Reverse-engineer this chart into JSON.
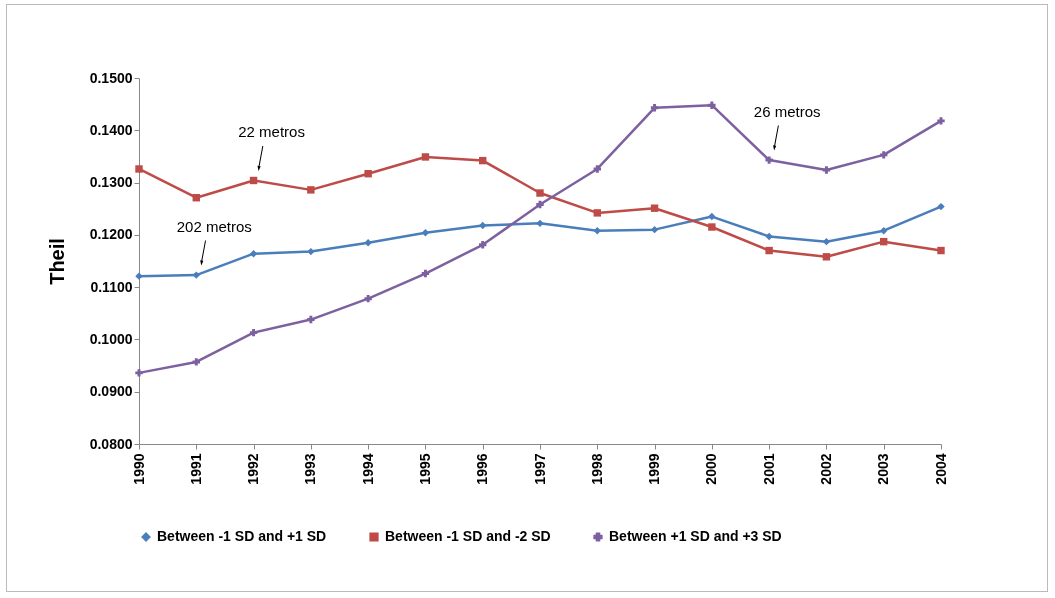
{
  "chart_data": {
    "type": "line",
    "ylabel": "Theil",
    "x": [
      1990,
      1991,
      1992,
      1993,
      1994,
      1995,
      1996,
      1997,
      1998,
      1999,
      2000,
      2001,
      2002,
      2003,
      2004
    ],
    "xlim": [
      1990,
      2004
    ],
    "xticks": [
      1990,
      1991,
      1992,
      1993,
      1994,
      1995,
      1996,
      1997,
      1998,
      1999,
      2000,
      2001,
      2002,
      2003,
      2004
    ],
    "ylim": [
      0.08,
      0.15
    ],
    "yticks": [
      {
        "value": 0.08,
        "label": "0.0800"
      },
      {
        "value": 0.09,
        "label": "0.0900"
      },
      {
        "value": 0.1,
        "label": "0.1000"
      },
      {
        "value": 0.11,
        "label": "0.1100"
      },
      {
        "value": 0.12,
        "label": "0.1200"
      },
      {
        "value": 0.13,
        "label": "0.1300"
      },
      {
        "value": 0.14,
        "label": "0.1400"
      },
      {
        "value": 0.15,
        "label": "0.1500"
      }
    ],
    "grid": false,
    "legend": "bottom",
    "line_style": "solid",
    "series": [
      {
        "name": "Between -1 SD and +1 SD",
        "color": "#4a7ebb",
        "marker": "diamond",
        "values": [
          0.1121,
          0.1123,
          0.1164,
          0.1168,
          0.1185,
          0.1204,
          0.1218,
          0.1222,
          0.1208,
          0.121,
          0.1235,
          0.1197,
          0.1187,
          0.1208,
          0.1254
        ]
      },
      {
        "name": "Between -1 SD and -2 SD",
        "color": "#be4b48",
        "marker": "square",
        "values": [
          0.1326,
          0.1271,
          0.1304,
          0.1286,
          0.1317,
          0.1349,
          0.1342,
          0.128,
          0.1242,
          0.1251,
          0.1215,
          0.117,
          0.1158,
          0.1187,
          0.117
        ]
      },
      {
        "name": "Between +1 SD and +3 SD",
        "color": "#7d60a0",
        "marker": "cross",
        "values": [
          0.0936,
          0.0957,
          0.1013,
          0.1038,
          0.1078,
          0.1126,
          0.1181,
          0.1258,
          0.1326,
          0.1443,
          0.1448,
          0.1343,
          0.1324,
          0.1353,
          0.1418
        ]
      }
    ],
    "annotations": [
      {
        "text": "202 metros",
        "x": 1991,
        "y": 0.1123
      },
      {
        "text": "22 metros",
        "x": 1992,
        "y": 0.1304
      },
      {
        "text": "26 metros",
        "x": 2001,
        "y": 0.1343
      }
    ]
  }
}
